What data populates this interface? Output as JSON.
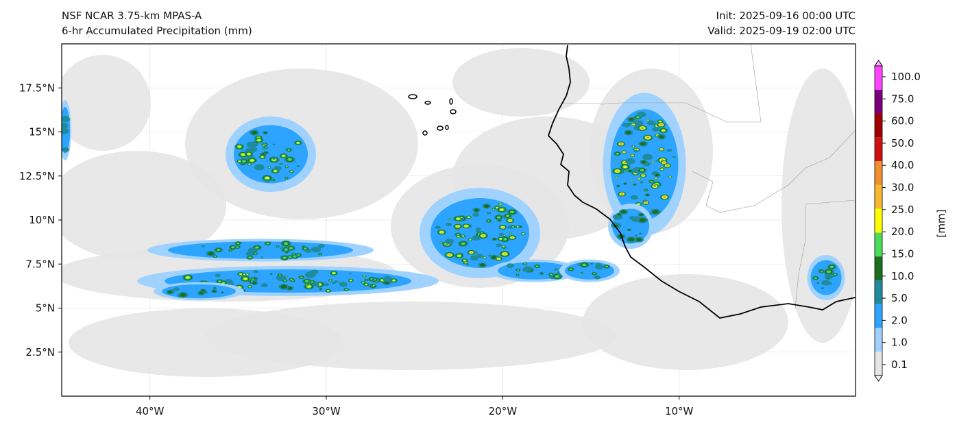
{
  "header": {
    "model": "NSF NCAR 3.75-km MPAS-A",
    "field": "6-hr Accumulated Precipitation (mm)",
    "init": "Init: 2025-09-16 00:00 UTC",
    "valid": "Valid: 2025-09-19 02:00 UTC"
  },
  "map": {
    "lon_range": [
      -45,
      0
    ],
    "lat_range": [
      0,
      20
    ],
    "lon_ticks": [
      {
        "lon": -40,
        "label": "40°W"
      },
      {
        "lon": -30,
        "label": "30°W"
      },
      {
        "lon": -20,
        "label": "20°W"
      },
      {
        "lon": -10,
        "label": "10°W"
      }
    ],
    "lat_ticks": [
      {
        "lat": 17.5,
        "label": "17.5°N"
      },
      {
        "lat": 15,
        "label": "15°N"
      },
      {
        "lat": 12.5,
        "label": "12.5°N"
      },
      {
        "lat": 10,
        "label": "10°N"
      },
      {
        "lat": 7.5,
        "label": "7.5°N"
      },
      {
        "lat": 5,
        "label": "5°N"
      },
      {
        "lat": 2.5,
        "label": "2.5°N"
      }
    ]
  },
  "colorbar": {
    "label": "[mm]",
    "levels": [
      "0.1",
      "1.0",
      "2.0",
      "5.0",
      "10.0",
      "15.0",
      "20.0",
      "25.0",
      "30.0",
      "40.0",
      "50.0",
      "60.0",
      "75.0",
      "100.0"
    ],
    "colors": [
      "#e6e6e6",
      "#a0d2ff",
      "#2da4ff",
      "#1e8c9c",
      "#1c6e1c",
      "#4cdc5c",
      "#ffff00",
      "#f8b830",
      "#f09030",
      "#d01010",
      "#a00000",
      "#7a007a",
      "#ff44ff"
    ],
    "over_color": "#ffb0ff",
    "under_color": "#ffffff"
  }
}
